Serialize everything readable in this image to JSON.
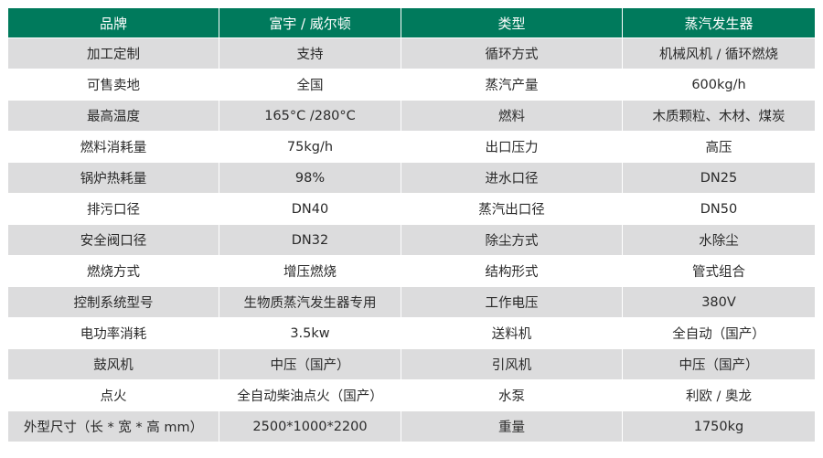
{
  "colors": {
    "header_bg": "#007a5c",
    "stripe_bg": "#dcdcdd"
  },
  "header": [
    "品牌",
    "富宇 / 威尔顿",
    "类型",
    "蒸汽发生器"
  ],
  "rows": [
    [
      "加工定制",
      "支持",
      "循环方式",
      "机械风机 / 循环燃烧"
    ],
    [
      "可售卖地",
      "全国",
      "蒸汽产量",
      "600kg/h"
    ],
    [
      "最高温度",
      "165°C /280°C",
      "燃料",
      "木质颗粒、木材、煤炭"
    ],
    [
      "燃料消耗量",
      "75kg/h",
      "出口压力",
      "高压"
    ],
    [
      "锅炉热耗量",
      "98%",
      "进水口径",
      "DN25"
    ],
    [
      "排污口径",
      "DN40",
      "蒸汽出口径",
      "DN50"
    ],
    [
      "安全阀口径",
      "DN32",
      "除尘方式",
      "水除尘"
    ],
    [
      "燃烧方式",
      "增压燃烧",
      "结构形式",
      "管式组合"
    ],
    [
      "控制系统型号",
      "生物质蒸汽发生器专用",
      "工作电压",
      "380V"
    ],
    [
      "电功率消耗",
      "3.5kw",
      "送料机",
      "全自动（国产）"
    ],
    [
      "鼓风机",
      "中压（国产）",
      "引风机",
      "中压（国产）"
    ],
    [
      "点火",
      "全自动柴油点火（国产）",
      "水泵",
      "利欧 / 奥龙"
    ],
    [
      "外型尺寸（长 * 宽 * 高 mm）",
      "2500*1000*2200",
      "重量",
      "1750kg"
    ]
  ]
}
